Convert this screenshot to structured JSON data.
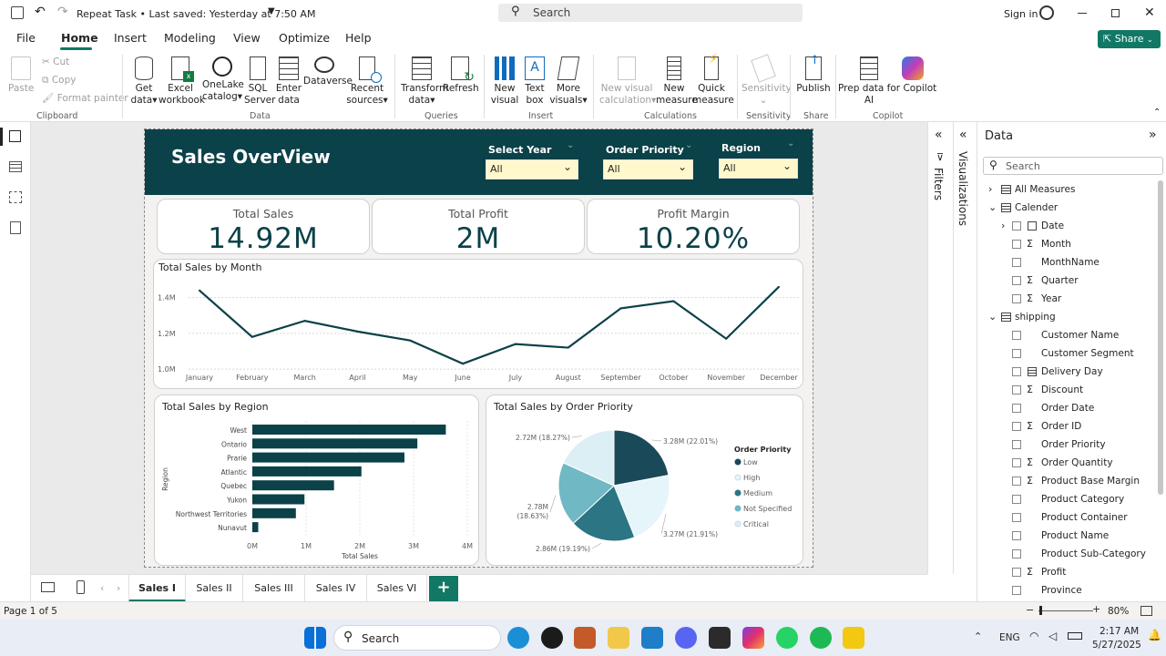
{
  "titlebar": {
    "title": "Repeat Task • Last saved: Yesterday at 7:50 AM",
    "search": "Search",
    "sign_in": "Sign in"
  },
  "tabs": [
    "File",
    "Home",
    "Insert",
    "Modeling",
    "View",
    "Optimize",
    "Help"
  ],
  "share": "Share",
  "ribbon": {
    "paste": "Paste",
    "cut": "Cut",
    "copy": "Copy",
    "format_painter": "Format painter",
    "get_data": [
      "Get",
      "data"
    ],
    "excel": [
      "Excel",
      "workbook"
    ],
    "onelake": [
      "OneLake",
      "catalog"
    ],
    "sql": [
      "SQL",
      "Server"
    ],
    "enter": [
      "Enter",
      "data"
    ],
    "dataverse": "Dataverse",
    "recent": [
      "Recent",
      "sources"
    ],
    "transform": [
      "Transform",
      "data"
    ],
    "refresh": "Refresh",
    "new_visual": [
      "New",
      "visual"
    ],
    "text_box": [
      "Text",
      "box"
    ],
    "more_visuals": [
      "More",
      "visuals"
    ],
    "new_visual_calc": [
      "New visual",
      "calculation"
    ],
    "new_measure": [
      "New",
      "measure"
    ],
    "quick_measure": [
      "Quick",
      "measure"
    ],
    "sensitivity": "Sensitivity",
    "publish": "Publish",
    "prep_data": [
      "Prep data for Copilot",
      "AI"
    ],
    "copilot": "Copilot",
    "groups": [
      "Clipboard",
      "Data",
      "Queries",
      "Insert",
      "Calculations",
      "Sensitivity",
      "Share",
      "Copilot"
    ]
  },
  "report": {
    "title": "Sales OverView",
    "slicers": [
      {
        "label": "Select Year",
        "value": "All"
      },
      {
        "label": "Order Priority",
        "value": "All"
      },
      {
        "label": "Region",
        "value": "All"
      }
    ],
    "cards": [
      {
        "label": "Total Sales",
        "value": "14.92M"
      },
      {
        "label": "Total Profit",
        "value": "2M"
      },
      {
        "label": "Profit Margin",
        "value": "10.20%"
      }
    ],
    "line_title": "Total Sales by Month",
    "bar_title": "Total Sales by Region",
    "pie_title": "Total Sales by Order Priority"
  },
  "chart_data": [
    {
      "type": "line",
      "title": "Total Sales by Month",
      "categories": [
        "January",
        "February",
        "March",
        "April",
        "May",
        "June",
        "July",
        "August",
        "September",
        "October",
        "November",
        "December"
      ],
      "values": [
        1.44,
        1.18,
        1.27,
        1.21,
        1.16,
        1.03,
        1.14,
        1.12,
        1.34,
        1.38,
        1.17,
        1.46
      ],
      "yticks": [
        "1.0M",
        "1.2M",
        "1.4M"
      ],
      "ylim": [
        0.98,
        1.5
      ],
      "color": "#0b4148"
    },
    {
      "type": "bar",
      "orientation": "horizontal",
      "title": "Total Sales by Region",
      "categories": [
        "West",
        "Ontario",
        "Prarie",
        "Atlantic",
        "Quebec",
        "Yukon",
        "Northwest Territories",
        "Nunavut"
      ],
      "values": [
        3.6,
        3.07,
        2.83,
        2.03,
        1.52,
        0.97,
        0.81,
        0.11
      ],
      "xticks": [
        "0M",
        "1M",
        "2M",
        "3M",
        "4M"
      ],
      "xlim": [
        0,
        4
      ],
      "xlabel": "Total Sales",
      "ylabel": "Region",
      "color": "#0b4148"
    },
    {
      "type": "pie",
      "title": "Total Sales by Order Priority",
      "legend_title": "Order Priority",
      "slices": [
        {
          "name": "Low",
          "value": 22.01,
          "label": "3.28M (22.01%)",
          "color": "#1a4a59"
        },
        {
          "name": "High",
          "value": 21.91,
          "label": "3.27M (21.91%)",
          "color": "#e6f5fa"
        },
        {
          "name": "Medium",
          "value": 19.19,
          "label": "2.86M (19.19%)",
          "color": "#2b7585"
        },
        {
          "name": "Not Specified",
          "value": 18.63,
          "label": "2.78M (18.63%)",
          "color": "#6fb8c4"
        },
        {
          "name": "Critical",
          "value": 18.27,
          "label": "2.72M (18.27%)",
          "color": "#dceff5"
        }
      ],
      "legend_position": "right"
    }
  ],
  "panes": {
    "filters": "Filters",
    "visualizations": "Visualizations",
    "data": "Data",
    "search": "Search"
  },
  "fields": [
    {
      "indent": 0,
      "label": "All Measures",
      "type": "table",
      "expand": "›"
    },
    {
      "indent": 0,
      "label": "Calender",
      "type": "table",
      "expand": "⌄"
    },
    {
      "indent": 1,
      "label": "Date",
      "type": "date",
      "expand": "›"
    },
    {
      "indent": 1,
      "label": "Month",
      "type": "sigma"
    },
    {
      "indent": 1,
      "label": "MonthName",
      "type": "none"
    },
    {
      "indent": 1,
      "label": "Quarter",
      "type": "sigma"
    },
    {
      "indent": 1,
      "label": "Year",
      "type": "sigma"
    },
    {
      "indent": 0,
      "label": "shipping",
      "type": "table",
      "expand": "⌄"
    },
    {
      "indent": 1,
      "label": "Customer Name",
      "type": "none"
    },
    {
      "indent": 1,
      "label": "Customer Segment",
      "type": "none"
    },
    {
      "indent": 1,
      "label": "Delivery Day",
      "type": "calc"
    },
    {
      "indent": 1,
      "label": "Discount",
      "type": "sigma"
    },
    {
      "indent": 1,
      "label": "Order Date",
      "type": "none"
    },
    {
      "indent": 1,
      "label": "Order ID",
      "type": "sigma"
    },
    {
      "indent": 1,
      "label": "Order Priority",
      "type": "none"
    },
    {
      "indent": 1,
      "label": "Order Quantity",
      "type": "sigma"
    },
    {
      "indent": 1,
      "label": "Product Base Margin",
      "type": "sigma"
    },
    {
      "indent": 1,
      "label": "Product Category",
      "type": "none"
    },
    {
      "indent": 1,
      "label": "Product Container",
      "type": "none"
    },
    {
      "indent": 1,
      "label": "Product Name",
      "type": "none"
    },
    {
      "indent": 1,
      "label": "Product Sub-Category",
      "type": "none"
    },
    {
      "indent": 1,
      "label": "Profit",
      "type": "sigma"
    },
    {
      "indent": 1,
      "label": "Province",
      "type": "none"
    }
  ],
  "pages": [
    "Sales I",
    "Sales II",
    "Sales III",
    "Sales IV",
    "Sales VI"
  ],
  "add_page": "+",
  "status": {
    "page": "Page 1 of 5",
    "zoom": "80%"
  },
  "taskbar": {
    "search": "Search",
    "lang": "ENG",
    "time": "2:17 AM",
    "date": "5/27/2025"
  }
}
